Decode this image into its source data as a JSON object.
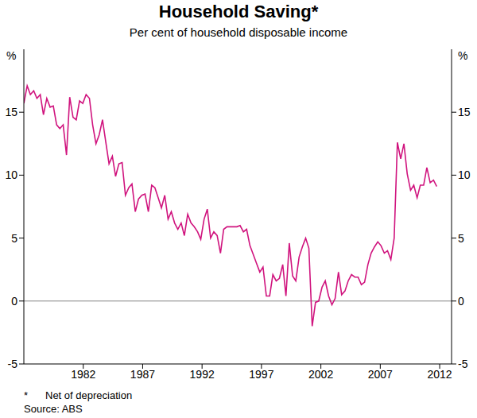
{
  "chart_data": {
    "type": "line",
    "title": "Household Saving*",
    "subtitle": "Per cent of household disposable income",
    "ylabel": "%",
    "y2label": "%",
    "footnote": {
      "mark": "*",
      "text": "Net of depreciation"
    },
    "source": "Source: ABS",
    "color": "#d0147e",
    "grid": false,
    "xlim": [
      1977,
      2013
    ],
    "xticks": [
      1982,
      1987,
      1992,
      1997,
      2002,
      2007,
      2012
    ],
    "ylim": [
      -5,
      20
    ],
    "yticks": [
      -5,
      0,
      5,
      10,
      15
    ],
    "y2lim": [
      -5,
      20
    ],
    "y2ticks": [
      -5,
      0,
      5,
      10,
      15
    ],
    "x": [
      1977.0,
      1977.28,
      1977.55,
      1977.83,
      1978.1,
      1978.38,
      1978.65,
      1978.93,
      1979.21,
      1979.48,
      1979.76,
      1980.03,
      1980.31,
      1980.59,
      1980.86,
      1981.14,
      1981.41,
      1981.69,
      1981.96,
      1982.24,
      1982.52,
      1982.79,
      1983.07,
      1983.34,
      1983.62,
      1983.9,
      1984.17,
      1984.45,
      1984.72,
      1985.0,
      1985.27,
      1985.55,
      1985.83,
      1986.1,
      1986.38,
      1986.65,
      1986.93,
      1987.2,
      1987.48,
      1987.76,
      1988.03,
      1988.31,
      1988.58,
      1988.86,
      1989.14,
      1989.41,
      1989.69,
      1989.96,
      1990.24,
      1990.51,
      1990.79,
      1991.07,
      1991.34,
      1991.62,
      1991.89,
      1992.17,
      1992.44,
      1992.72,
      1992.99,
      1993.27,
      1993.55,
      1993.82,
      1994.1,
      1994.38,
      1994.65,
      1994.93,
      1995.2,
      1995.48,
      1995.75,
      1996.03,
      1996.31,
      1996.58,
      1996.86,
      1997.13,
      1997.41,
      1997.69,
      1997.96,
      1998.24,
      1998.51,
      1998.79,
      1999.06,
      1999.34,
      1999.62,
      1999.89,
      2000.17,
      2000.44,
      2000.72,
      2000.99,
      2001.27,
      2001.55,
      2001.82,
      2002.1,
      2002.37,
      2002.65,
      2002.93,
      2003.2,
      2003.48,
      2003.75,
      2004.03,
      2004.3,
      2004.58,
      2004.86,
      2005.13,
      2005.41,
      2005.68,
      2005.96,
      2006.23,
      2006.51,
      2006.79,
      2007.06,
      2007.34,
      2007.61,
      2007.89,
      2008.17,
      2008.44,
      2008.72,
      2008.99,
      2009.27,
      2009.55,
      2009.82,
      2010.1,
      2010.37,
      2010.65,
      2010.92,
      2011.2,
      2011.48,
      2011.75
    ],
    "values": [
      15.7,
      17.1,
      16.4,
      16.7,
      16.1,
      16.4,
      14.8,
      16.1,
      15.4,
      15.5,
      14.0,
      13.7,
      14.0,
      11.6,
      16.2,
      14.6,
      14.4,
      15.9,
      15.7,
      16.4,
      16.1,
      14.0,
      12.5,
      13.2,
      14.4,
      12.6,
      10.9,
      11.5,
      9.9,
      10.9,
      11.0,
      8.4,
      9.0,
      9.3,
      7.1,
      8.1,
      8.4,
      8.5,
      7.1,
      9.2,
      9.0,
      8.2,
      7.4,
      8.4,
      6.5,
      7.1,
      6.2,
      5.7,
      6.2,
      5.2,
      6.9,
      6.2,
      5.9,
      5.5,
      4.9,
      6.5,
      7.3,
      5.0,
      5.5,
      5.2,
      3.8,
      5.7,
      5.9,
      5.9,
      5.9,
      5.9,
      6.0,
      5.5,
      5.7,
      4.4,
      3.7,
      3.0,
      2.3,
      2.7,
      0.4,
      0.4,
      2.1,
      1.6,
      1.8,
      2.9,
      0.4,
      4.6,
      2.0,
      1.6,
      3.5,
      4.3,
      5.0,
      4.2,
      -2.0,
      -0.1,
      0.0,
      1.1,
      1.6,
      0.4,
      -0.3,
      0.2,
      2.3,
      0.5,
      0.8,
      1.6,
      2.1,
      1.9,
      1.9,
      1.3,
      1.5,
      2.9,
      3.8,
      4.3,
      4.7,
      4.4,
      3.8,
      4.0,
      3.3,
      5.0,
      12.6,
      11.3,
      12.5,
      10.1,
      8.8,
      9.2,
      8.2,
      9.2,
      9.2,
      10.6,
      9.4,
      9.6,
      9.1
    ]
  }
}
